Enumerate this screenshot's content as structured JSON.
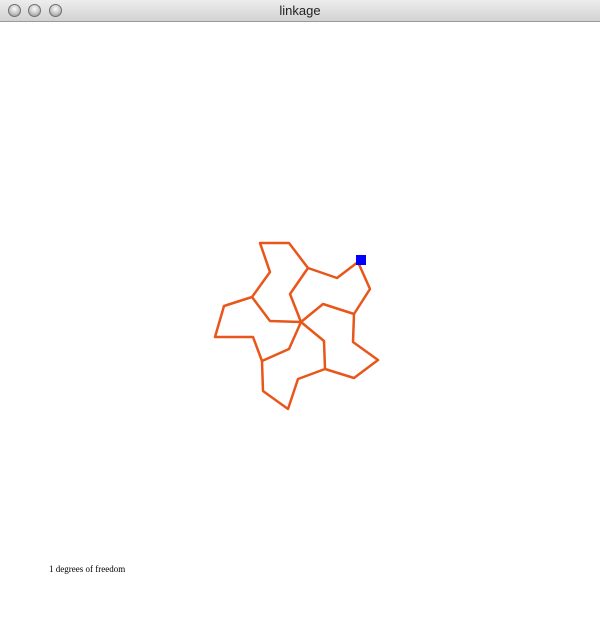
{
  "window": {
    "title": "linkage"
  },
  "linkage": {
    "link_color": "#e8561a",
    "handle_color": "#0000ff"
  },
  "status": {
    "degrees_of_freedom": "1 degrees of freedom"
  }
}
